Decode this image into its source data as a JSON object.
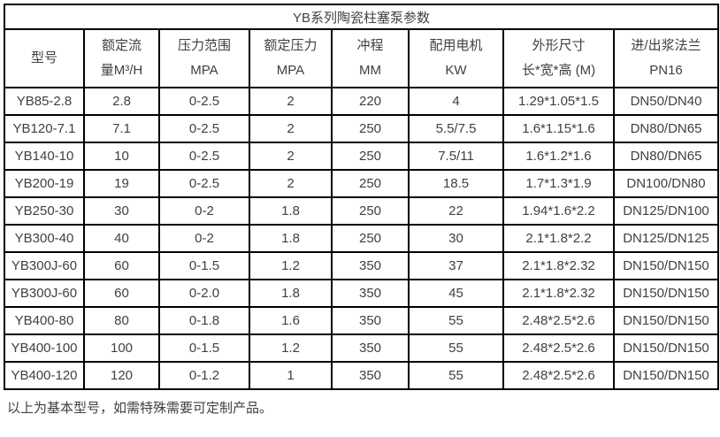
{
  "table": {
    "title": "YB系列陶瓷柱塞泵参数",
    "columns": [
      {
        "line1": "型号",
        "line2": ""
      },
      {
        "line1": "额定流",
        "line2": "量M³/H"
      },
      {
        "line1": "压力范围",
        "line2": "MPA"
      },
      {
        "line1": "额定压力",
        "line2": "MPA"
      },
      {
        "line1": "冲程",
        "line2": "MM"
      },
      {
        "line1": "配用电机",
        "line2": "KW"
      },
      {
        "line1": "外形尺寸",
        "line2": "长*宽*高 (M)"
      },
      {
        "line1": "进/出浆法兰",
        "line2": "PN16"
      }
    ],
    "rows": [
      [
        "YB85-2.8",
        "2.8",
        "0-2.5",
        "2",
        "220",
        "4",
        "1.29*1.05*1.5",
        "DN50/DN40"
      ],
      [
        "YB120-7.1",
        "7.1",
        "0-2.5",
        "2",
        "250",
        "5.5/7.5",
        "1.6*1.15*1.6",
        "DN80/DN65"
      ],
      [
        "YB140-10",
        "10",
        "0-2.5",
        "2",
        "250",
        "7.5/11",
        "1.6*1.2*1.6",
        "DN80/DN65"
      ],
      [
        "YB200-19",
        "19",
        "0-2.5",
        "2",
        "250",
        "18.5",
        "1.7*1.3*1.9",
        "DN100/DN80"
      ],
      [
        "YB250-30",
        "30",
        "0-2",
        "1.8",
        "250",
        "22",
        "1.94*1.6*2.2",
        "DN125/DN100"
      ],
      [
        "YB300-40",
        "40",
        "0-2",
        "1.8",
        "250",
        "30",
        "2.1*1.8*2.2",
        "DN125/DN125"
      ],
      [
        "YB300J-60",
        "60",
        "0-1.5",
        "1.2",
        "350",
        "37",
        "2.1*1.8*2.32",
        "DN150/DN150"
      ],
      [
        "YB300J-60",
        "60",
        "0-2.0",
        "1.8",
        "350",
        "45",
        "2.1*1.8*2.32",
        "DN150/DN150"
      ],
      [
        "YB400-80",
        "80",
        "0-1.8",
        "1.6",
        "350",
        "55",
        "2.48*2.5*2.6",
        "DN150/DN150"
      ],
      [
        "YB400-100",
        "100",
        "0-1.5",
        "1.2",
        "350",
        "55",
        "2.48*2.5*2.6",
        "DN150/DN150"
      ],
      [
        "YB400-120",
        "120",
        "0-1.2",
        "1",
        "350",
        "55",
        "2.48*2.5*2.6",
        "DN150/DN150"
      ]
    ],
    "footnote": "以上为基本型号，如需特殊需要可定制产品。"
  },
  "colors": {
    "border": "#000000",
    "text": "#404040",
    "background": "#ffffff"
  }
}
